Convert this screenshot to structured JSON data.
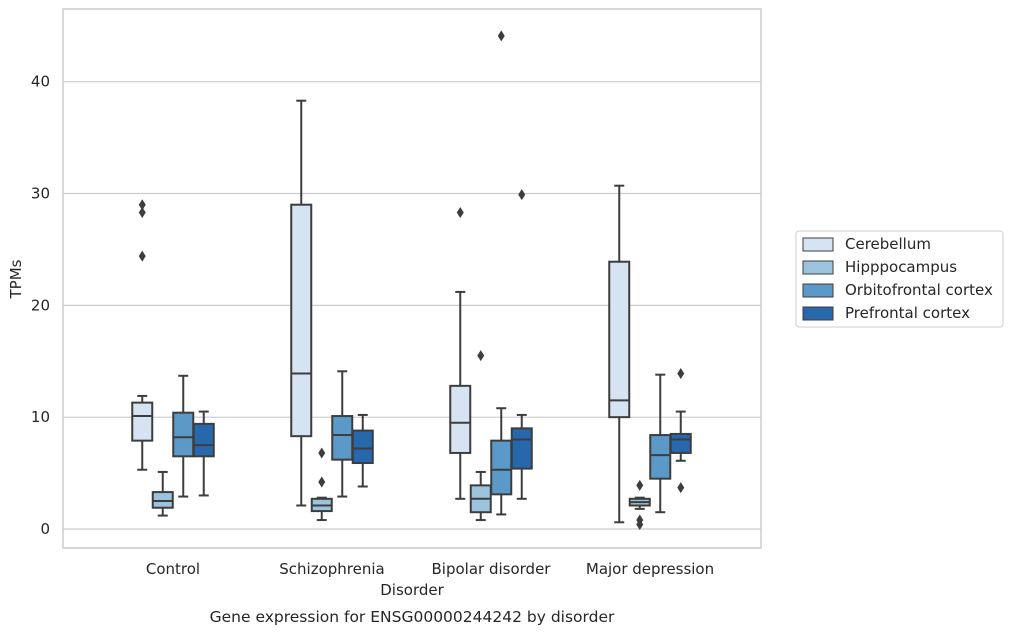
{
  "chart_data": {
    "type": "box",
    "title": "",
    "caption": "Gene expression for ENSG00000244242 by disorder",
    "xlabel": "Disorder",
    "ylabel": "TPMs",
    "ylim": [
      -1.7,
      46.5
    ],
    "yticks": [
      0,
      10,
      20,
      30,
      40
    ],
    "grid": "horizontal",
    "legend_position": "right",
    "categories": [
      "Control",
      "Schizophrenia",
      "Bipolar disorder",
      "Major depression"
    ],
    "series": [
      {
        "name": "Cerebellum",
        "color": "#d6e3f2",
        "boxes": [
          {
            "category": "Control",
            "whisker_low": 5.3,
            "q1": 7.9,
            "median": 10.1,
            "q3": 11.3,
            "whisker_high": 11.9,
            "outliers": [
              29.0,
              28.3,
              24.4
            ]
          },
          {
            "category": "Schizophrenia",
            "whisker_low": 2.1,
            "q1": 8.3,
            "median": 13.9,
            "q3": 29.0,
            "whisker_high": 38.3,
            "outliers": []
          },
          {
            "category": "Bipolar disorder",
            "whisker_low": 2.7,
            "q1": 6.8,
            "median": 9.5,
            "q3": 12.8,
            "whisker_high": 21.2,
            "outliers": [
              28.3
            ]
          },
          {
            "category": "Major depression",
            "whisker_low": 0.6,
            "q1": 10.0,
            "median": 11.5,
            "q3": 23.9,
            "whisker_high": 30.7,
            "outliers": []
          }
        ]
      },
      {
        "name": "Hipppocampus",
        "color": "#9cc3de",
        "boxes": [
          {
            "category": "Control",
            "whisker_low": 1.2,
            "q1": 1.9,
            "median": 2.5,
            "q3": 3.3,
            "whisker_high": 5.1,
            "outliers": []
          },
          {
            "category": "Schizophrenia",
            "whisker_low": 0.8,
            "q1": 1.6,
            "median": 2.1,
            "q3": 2.7,
            "whisker_high": 2.8,
            "outliers": [
              6.8,
              4.2
            ]
          },
          {
            "category": "Bipolar disorder",
            "whisker_low": 0.8,
            "q1": 1.5,
            "median": 2.7,
            "q3": 3.9,
            "whisker_high": 5.1,
            "outliers": [
              15.5
            ]
          },
          {
            "category": "Major depression",
            "whisker_low": 1.8,
            "q1": 2.1,
            "median": 2.4,
            "q3": 2.7,
            "whisker_high": 2.8,
            "outliers": [
              3.9,
              0.8,
              0.4
            ]
          }
        ]
      },
      {
        "name": "Orbitofrontal cortex",
        "color": "#5a99c8",
        "boxes": [
          {
            "category": "Control",
            "whisker_low": 2.9,
            "q1": 6.5,
            "median": 8.2,
            "q3": 10.4,
            "whisker_high": 13.7,
            "outliers": []
          },
          {
            "category": "Schizophrenia",
            "whisker_low": 2.9,
            "q1": 6.2,
            "median": 8.4,
            "q3": 10.1,
            "whisker_high": 14.1,
            "outliers": []
          },
          {
            "category": "Bipolar disorder",
            "whisker_low": 1.3,
            "q1": 3.1,
            "median": 5.3,
            "q3": 7.9,
            "whisker_high": 10.8,
            "outliers": [
              44.1
            ]
          },
          {
            "category": "Major depression",
            "whisker_low": 1.5,
            "q1": 4.5,
            "median": 6.6,
            "q3": 8.4,
            "whisker_high": 13.8,
            "outliers": []
          }
        ]
      },
      {
        "name": "Prefrontal cortex",
        "color": "#2767ab",
        "boxes": [
          {
            "category": "Control",
            "whisker_low": 3.0,
            "q1": 6.5,
            "median": 7.5,
            "q3": 9.4,
            "whisker_high": 10.5,
            "outliers": []
          },
          {
            "category": "Schizophrenia",
            "whisker_low": 3.8,
            "q1": 5.9,
            "median": 7.2,
            "q3": 8.8,
            "whisker_high": 10.2,
            "outliers": []
          },
          {
            "category": "Bipolar disorder",
            "whisker_low": 2.7,
            "q1": 5.4,
            "median": 8.0,
            "q3": 9.0,
            "whisker_high": 10.2,
            "outliers": [
              29.9
            ]
          },
          {
            "category": "Major depression",
            "whisker_low": 6.1,
            "q1": 6.8,
            "median": 8.0,
            "q3": 8.5,
            "whisker_high": 10.5,
            "outliers": [
              13.9,
              3.7
            ]
          }
        ]
      }
    ]
  }
}
